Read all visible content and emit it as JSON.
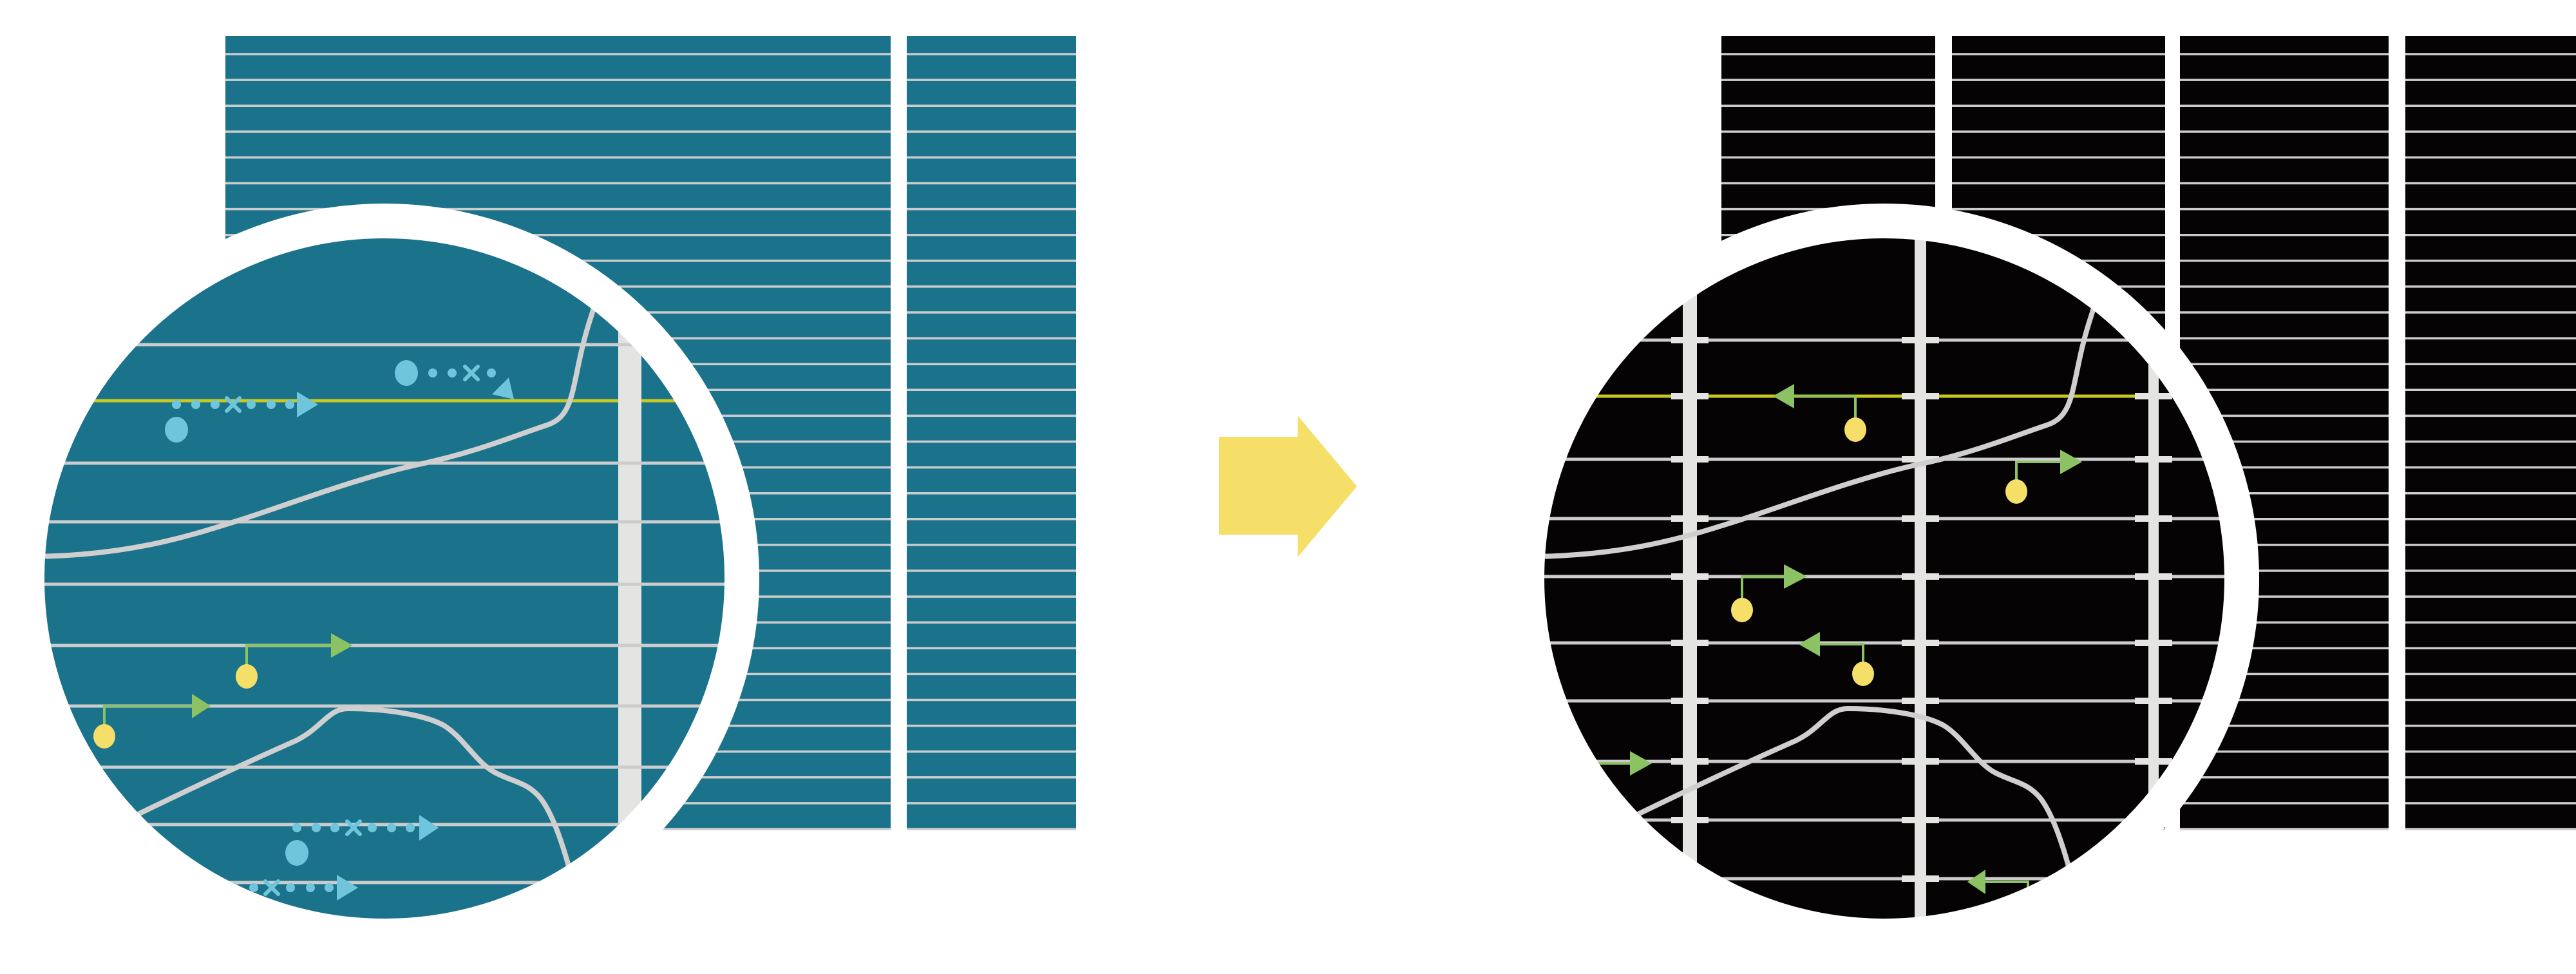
{
  "colors": {
    "background": "#ffffff",
    "teal_panel": "#1b738b",
    "black_panel": "#050303",
    "grid_line": "#cccccc",
    "bar": "#e4e4e2",
    "highlight_line": "#c8c81e",
    "curve": "#cfcfcf",
    "blue_symbol": "#6fc6dc",
    "green_arrow": "#8cc264",
    "yellow_dot": "#f5df68",
    "transition_arrow": "#f5df68",
    "ring": "#ffffff"
  },
  "icons": {
    "transition": "right-arrow-icon",
    "left_magnifier": "magnifier-circle",
    "right_magnifier": "magnifier-circle"
  }
}
